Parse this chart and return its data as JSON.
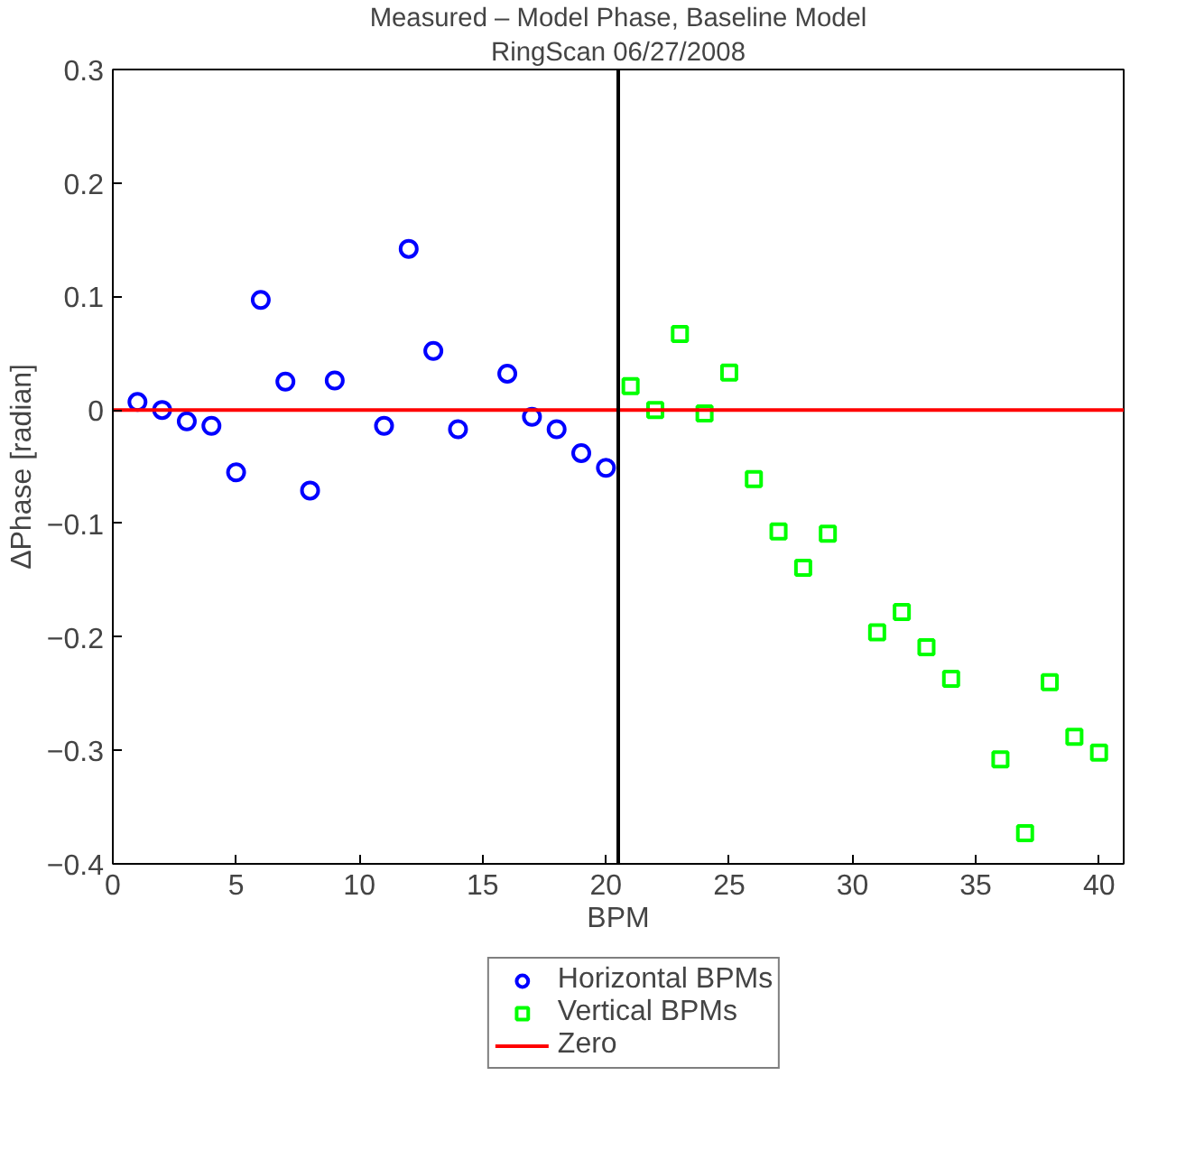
{
  "chart_data": {
    "type": "scatter",
    "title": "Measured – Model Phase, Baseline Model",
    "subtitle": "RingScan 06/27/2008",
    "xlabel": "BPM",
    "ylabel": "ΔPhase [radian]",
    "xlim": [
      0,
      41
    ],
    "ylim": [
      -0.4,
      0.3
    ],
    "xticks": [
      0,
      5,
      10,
      15,
      20,
      25,
      30,
      35,
      40
    ],
    "yticks": [
      -0.4,
      -0.3,
      -0.2,
      -0.1,
      0,
      0.1,
      0.2,
      0.3
    ],
    "grid": false,
    "legend": "bottom",
    "series": [
      {
        "name": "Horizontal BPMs",
        "color": "#0000ff",
        "marker": "circle",
        "x": [
          1,
          2,
          3,
          4,
          5,
          6,
          7,
          8,
          9,
          11,
          12,
          13,
          14,
          16,
          17,
          18,
          19,
          20
        ],
        "values": [
          0.007,
          0.0,
          -0.01,
          -0.014,
          -0.055,
          0.097,
          0.025,
          -0.071,
          0.026,
          -0.014,
          0.142,
          0.052,
          -0.017,
          0.032,
          -0.006,
          -0.017,
          -0.038,
          -0.051
        ]
      },
      {
        "name": "Vertical BPMs",
        "color": "#00ff00",
        "marker": "square",
        "x": [
          21,
          22,
          23,
          24,
          25,
          26,
          27,
          28,
          29,
          31,
          32,
          33,
          34,
          36,
          37,
          38,
          39,
          40
        ],
        "values": [
          0.021,
          0.0,
          0.067,
          -0.003,
          0.033,
          -0.061,
          -0.107,
          -0.139,
          -0.109,
          -0.196,
          -0.178,
          -0.209,
          -0.237,
          -0.308,
          -0.373,
          -0.24,
          -0.288,
          -0.302
        ]
      },
      {
        "name": "Zero",
        "type": "line",
        "color": "#ff0000",
        "marker": "none",
        "x": [
          0,
          41
        ],
        "values": [
          0,
          0
        ]
      }
    ],
    "ref_lines": [
      {
        "axis": "x",
        "value": 20.5,
        "color": "#000000",
        "line_style": "solid"
      }
    ]
  }
}
